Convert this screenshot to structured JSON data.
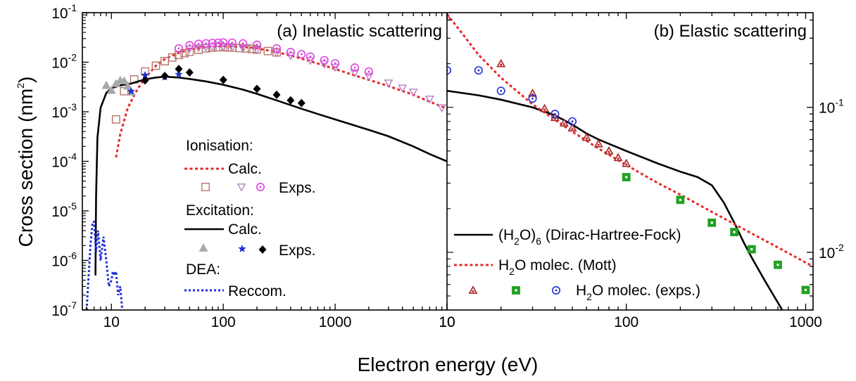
{
  "figure": {
    "xlabel": "Electron energy (eV)",
    "ylabel": "Cross section (nm",
    "ylabel_sup": "2",
    "ylabel_tail": ")"
  },
  "colors": {
    "ion_calc": "#e8282a",
    "ion_exp1": "#b5756b",
    "ion_exp2": "#b77fc4",
    "ion_exp3": "#e040e0",
    "exc_calc": "#000000",
    "exc_exp1": "#a8a8a8",
    "exc_exp2": "#1f2fd6",
    "exc_exp3": "#000000",
    "dea": "#1f2fd6",
    "el_calc": "#000000",
    "el_mott": "#e8282a",
    "el_exp1": "#a82020",
    "el_exp2": "#22a022",
    "el_exp3": "#1f2fd6"
  },
  "chart_data": [
    {
      "type": "line",
      "title": "(a) Inelastic scattering",
      "x_scale": "log",
      "y_scale": "log",
      "xlim": [
        5.5,
        10000
      ],
      "ylim": [
        1e-07,
        0.1
      ],
      "x_ticks": [
        10,
        100,
        1000
      ],
      "x_tick_labels": [
        "10",
        "100",
        "1000"
      ],
      "x_end_label": "10",
      "y_ticks": [
        1e-07,
        1e-06,
        1e-05,
        0.0001,
        0.001,
        0.01,
        0.1
      ],
      "y_tick_labels": [
        {
          "base": "10",
          "exp": "-7"
        },
        {
          "base": "10",
          "exp": "-6"
        },
        {
          "base": "10",
          "exp": "-5"
        },
        {
          "base": "10",
          "exp": "-4"
        },
        {
          "base": "10",
          "exp": "-3"
        },
        {
          "base": "10",
          "exp": "-2"
        },
        {
          "base": "10",
          "exp": "-1"
        }
      ],
      "legend": {
        "placement": "lower-center",
        "groups": [
          {
            "heading": "Ionisation:",
            "calc_label": "Calc.",
            "exp_label": "Exps."
          },
          {
            "heading": "Excitation:",
            "calc_label": "Calc.",
            "exp_label": "Exps."
          },
          {
            "heading": "DEA:",
            "calc_label": "Reccom."
          }
        ]
      },
      "series": [
        {
          "key": "ion_calc",
          "style": "dotted-line",
          "x": [
            11,
            12,
            14,
            17,
            20,
            25,
            30,
            40,
            50,
            70,
            100,
            150,
            200,
            300,
            400,
            600,
            1000,
            1500,
            2000,
            3000,
            5000,
            7000,
            10000
          ],
          "y": [
            0.00012,
            0.00035,
            0.0012,
            0.0028,
            0.0048,
            0.0085,
            0.0115,
            0.0155,
            0.018,
            0.02,
            0.021,
            0.0205,
            0.019,
            0.016,
            0.0137,
            0.0105,
            0.0073,
            0.0054,
            0.0044,
            0.0033,
            0.0022,
            0.0016,
            0.00115
          ]
        },
        {
          "key": "ion_exp1",
          "marker": "square",
          "x": [
            11,
            13,
            16,
            20,
            25,
            30,
            35,
            40,
            45,
            50,
            60,
            70,
            80,
            90,
            100,
            110,
            120,
            140,
            160,
            180,
            200,
            250,
            300
          ],
          "y": [
            0.0007,
            0.0026,
            0.0045,
            0.0065,
            0.0085,
            0.0105,
            0.0125,
            0.014,
            0.0152,
            0.0162,
            0.0178,
            0.019,
            0.0197,
            0.02,
            0.0201,
            0.0199,
            0.0197,
            0.0193,
            0.019,
            0.0185,
            0.018,
            0.0168,
            0.0158
          ]
        },
        {
          "key": "ion_exp2",
          "marker": "triangle-down",
          "x": [
            50,
            60,
            70,
            80,
            100,
            120,
            150,
            200,
            300,
            400,
            600,
            800,
            1000,
            1500,
            2000,
            3000,
            4000,
            5000,
            7000,
            9000
          ],
          "y": [
            0.0185,
            0.0195,
            0.02,
            0.0202,
            0.0203,
            0.0198,
            0.019,
            0.0178,
            0.0155,
            0.0135,
            0.0108,
            0.0092,
            0.0079,
            0.0061,
            0.0052,
            0.0038,
            0.003,
            0.0025,
            0.0018,
            0.0012
          ]
        },
        {
          "key": "ion_exp3",
          "marker": "circle-dot",
          "x": [
            40,
            50,
            60,
            70,
            80,
            90,
            100,
            120,
            150,
            200,
            300,
            400,
            500,
            600,
            800,
            1000,
            1500,
            2000
          ],
          "y": [
            0.019,
            0.022,
            0.0235,
            0.024,
            0.0245,
            0.0248,
            0.025,
            0.0248,
            0.024,
            0.0225,
            0.019,
            0.016,
            0.0145,
            0.013,
            0.011,
            0.0095,
            0.0078,
            0.0065
          ]
        },
        {
          "key": "exc_calc",
          "style": "solid-line",
          "x": [
            7.2,
            7.3,
            7.5,
            8,
            9,
            10,
            12,
            15,
            20,
            25,
            30,
            40,
            50,
            70,
            100,
            150,
            200,
            300,
            500,
            700,
            1000,
            2000,
            3000,
            5000,
            7000,
            10000
          ],
          "y": [
            5e-07,
            2e-05,
            0.0003,
            0.0012,
            0.0024,
            0.003,
            0.0034,
            0.0037,
            0.0045,
            0.0049,
            0.0051,
            0.0049,
            0.0046,
            0.0041,
            0.0035,
            0.0028,
            0.0023,
            0.0017,
            0.00115,
            0.0009,
            0.0007,
            0.00043,
            0.00032,
            0.0002,
            0.00014,
            0.0001
          ]
        },
        {
          "key": "exc_exp1",
          "marker": "triangle-up",
          "x": [
            9,
            10,
            11,
            12,
            13,
            14,
            15
          ],
          "y": [
            0.0034,
            0.0027,
            0.0037,
            0.0043,
            0.0042,
            0.0033,
            0.0025
          ]
        },
        {
          "key": "exc_exp2",
          "marker": "star",
          "x": [
            15,
            20,
            30,
            40
          ],
          "y": [
            0.0026,
            0.0055,
            0.005,
            0.0057
          ]
        },
        {
          "key": "exc_exp3",
          "marker": "diamond",
          "x": [
            20,
            30,
            40,
            50,
            100,
            200,
            300,
            400,
            500
          ],
          "y": [
            0.0043,
            0.0053,
            0.0073,
            0.0062,
            0.0044,
            0.0029,
            0.0022,
            0.0017,
            0.0015
          ]
        },
        {
          "key": "dea",
          "style": "dotted-line",
          "x": [
            6,
            6.5,
            6.8,
            7,
            7.3,
            7.6,
            8,
            8.5,
            9,
            9.5,
            10,
            10.3,
            10.6,
            11,
            11.5,
            12,
            12.5,
            13
          ],
          "y": [
            1e-07,
            2e-06,
            6e-06,
            6e-06,
            1.5e-06,
            4e-06,
            1e-06,
            3e-06,
            1e-06,
            3e-07,
            4e-07,
            6e-07,
            5e-07,
            6e-07,
            2e-07,
            3e-07,
            1e-07,
            5e-08
          ]
        }
      ]
    },
    {
      "type": "line",
      "title": "(b) Elastic scattering",
      "x_scale": "log",
      "y_scale": "log",
      "xlim": [
        10,
        1100
      ],
      "ylim": [
        0.004,
        0.45
      ],
      "x_ticks": [
        10,
        100,
        1000
      ],
      "x_tick_labels": [
        "10",
        "100",
        "1000"
      ],
      "y_axis_side": "right",
      "y_ticks": [
        0.01,
        0.1
      ],
      "y_tick_labels": [
        {
          "base": "10",
          "exp": "-2"
        },
        {
          "base": "10",
          "exp": "-1"
        }
      ],
      "legend": {
        "placement": "lower-left",
        "entries": [
          {
            "key": "el_calc",
            "text_main": "(H",
            "text_sub1": "2",
            "text_mid": "O)",
            "text_sub2": "6",
            "text_tail": " (Dirac-Hartree-Fock)"
          },
          {
            "key": "el_mott",
            "text_main": "H",
            "text_sub1": "2",
            "text_tail": "O molec. (Mott)"
          },
          {
            "key": "el_exp",
            "text_main": "H",
            "text_sub1": "2",
            "text_tail": "O molec. (exps.)"
          }
        ]
      },
      "series": [
        {
          "key": "el_calc",
          "style": "solid-line",
          "x": [
            10,
            15,
            20,
            30,
            40,
            50,
            60,
            70,
            80,
            100,
            150,
            200,
            250,
            300,
            350,
            400,
            450,
            500,
            600,
            700,
            800
          ],
          "y": [
            0.13,
            0.121,
            0.113,
            0.1,
            0.088,
            0.076,
            0.066,
            0.06,
            0.056,
            0.05,
            0.041,
            0.036,
            0.033,
            0.029,
            0.022,
            0.016,
            0.0118,
            0.0092,
            0.0062,
            0.0045,
            0.0034
          ]
        },
        {
          "key": "el_mott",
          "style": "dotted-line",
          "x": [
            10,
            12,
            15,
            20,
            30,
            40,
            50,
            70,
            100,
            150,
            200,
            300,
            500,
            700,
            1000,
            1100
          ],
          "y": [
            0.44,
            0.33,
            0.23,
            0.16,
            0.105,
            0.082,
            0.068,
            0.052,
            0.04,
            0.03,
            0.025,
            0.019,
            0.0135,
            0.0108,
            0.0085,
            0.008
          ]
        },
        {
          "key": "el_exp1",
          "marker": "triangle-up-dot",
          "x": [
            10,
            20,
            30,
            35,
            40,
            45,
            50,
            60,
            70,
            80,
            90,
            100
          ],
          "y": [
            0.42,
            0.2,
            0.125,
            0.098,
            0.085,
            0.078,
            0.072,
            0.062,
            0.056,
            0.05,
            0.045,
            0.041
          ]
        },
        {
          "key": "el_exp2",
          "marker": "square-dot",
          "x": [
            100,
            200,
            300,
            400,
            500,
            700,
            1000
          ],
          "y": [
            0.033,
            0.023,
            0.016,
            0.0138,
            0.0105,
            0.0082,
            0.0055
          ]
        },
        {
          "key": "el_exp3",
          "marker": "circle-dot",
          "x": [
            10,
            15,
            20,
            30,
            40,
            50
          ],
          "y": [
            0.18,
            0.18,
            0.13,
            0.115,
            0.09,
            0.08
          ]
        }
      ]
    }
  ]
}
